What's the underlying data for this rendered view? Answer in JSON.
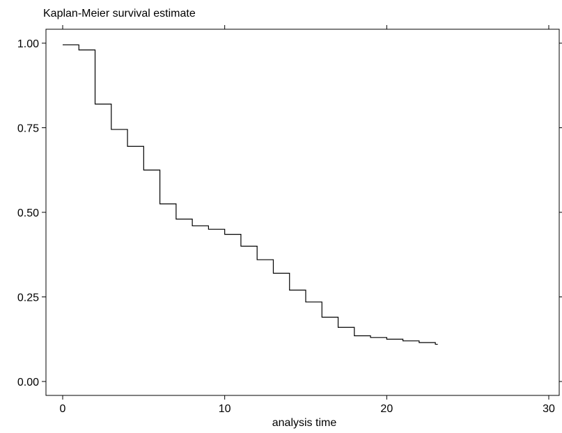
{
  "chart_data": {
    "type": "line",
    "title": "Kaplan-Meier survival estimate",
    "xlabel": "analysis time",
    "ylabel": "",
    "xlim": [
      0,
      30
    ],
    "ylim": [
      0,
      1
    ],
    "x_ticks": [
      0,
      10,
      20,
      30
    ],
    "y_ticks": [
      0.0,
      0.25,
      0.5,
      0.75,
      1.0
    ],
    "x_tick_labels": [
      "0",
      "10",
      "20",
      "30"
    ],
    "y_tick_labels": [
      "0.00",
      "0.25",
      "0.50",
      "0.75",
      "1.00"
    ],
    "grid": false,
    "step": true,
    "line_color": "#000000",
    "series": [
      {
        "x": [
          0,
          1,
          2,
          3,
          4,
          5,
          6,
          7,
          8,
          9,
          10,
          11,
          12,
          13,
          14,
          15,
          16,
          17,
          18,
          19,
          20,
          21,
          22,
          23
        ],
        "values": [
          0.995,
          0.98,
          0.82,
          0.745,
          0.695,
          0.625,
          0.525,
          0.48,
          0.46,
          0.45,
          0.435,
          0.4,
          0.36,
          0.32,
          0.27,
          0.235,
          0.19,
          0.16,
          0.135,
          0.13,
          0.125,
          0.12,
          0.115,
          0.11
        ]
      }
    ]
  }
}
